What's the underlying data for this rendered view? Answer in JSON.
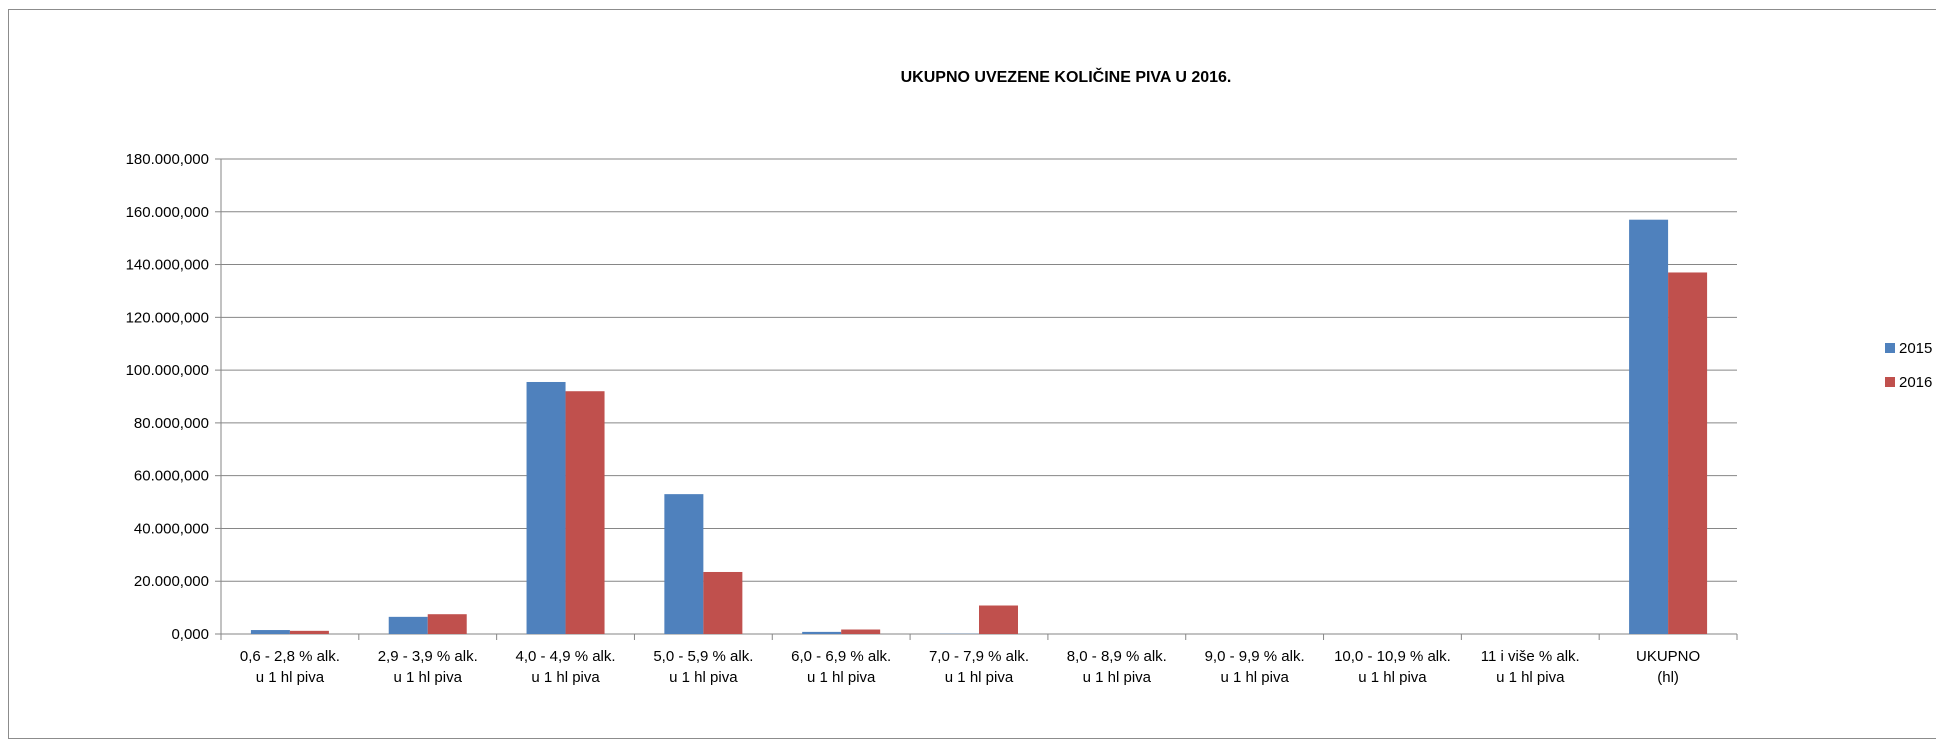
{
  "chart_data": {
    "type": "bar",
    "title": "UKUPNO UVEZENE KOLIČINE PIVA U 2016.",
    "xlabel": "",
    "ylabel": "",
    "ylim": [
      0,
      180000000
    ],
    "y_ticks": [
      "0,000",
      "20.000,000",
      "40.000,000",
      "60.000,000",
      "80.000,000",
      "100.000,000",
      "120.000,000",
      "140.000,000",
      "160.000,000",
      "180.000,000"
    ],
    "y_tick_values": [
      0,
      20000000,
      40000000,
      60000000,
      80000000,
      100000000,
      120000000,
      140000000,
      160000000,
      180000000
    ],
    "grid": true,
    "legend_position": "right",
    "categories": [
      [
        "0,6 -  2,8 % alk.",
        "u 1 hl piva"
      ],
      [
        "2,9 -  3,9 % alk.",
        "u 1 hl piva"
      ],
      [
        "4,0 -  4,9 % alk.",
        "u 1 hl piva"
      ],
      [
        "5,0 -  5,9 % alk.",
        "u 1 hl piva"
      ],
      [
        "6,0 -  6,9 % alk.",
        "u 1 hl piva"
      ],
      [
        "7,0 -  7,9 % alk.",
        "u 1 hl piva"
      ],
      [
        "8,0 -  8,9 % alk.",
        "u 1 hl piva"
      ],
      [
        "9,0 -  9,9 % alk.",
        "u 1 hl piva"
      ],
      [
        "10,0 - 10,9 % alk.",
        "u 1 hl piva"
      ],
      [
        "11 i više % alk.",
        "u 1 hl piva"
      ],
      [
        "UKUPNO",
        "(hl)"
      ]
    ],
    "series": [
      {
        "name": "2015",
        "color": "#4f81bd",
        "values": [
          1500000,
          6500000,
          95500000,
          53000000,
          800000,
          100000,
          0,
          0,
          0,
          0,
          157000000
        ]
      },
      {
        "name": "2016",
        "color": "#c0504d",
        "values": [
          1200000,
          7500000,
          92000000,
          23500000,
          1700000,
          10800000,
          0,
          0,
          0,
          0,
          137000000
        ]
      }
    ]
  }
}
